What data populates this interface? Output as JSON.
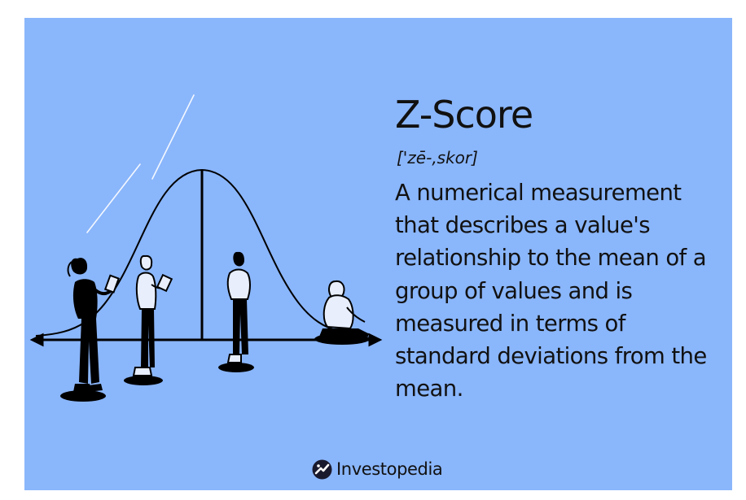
{
  "card": {
    "background": "#8ab6fb",
    "title": "Z-Score",
    "pronunciation": "['zē-,skor]",
    "definition": "A numerical measurement that describes a value's relationship to the mean of a group of values and is measured in terms of standard deviations from the mean."
  },
  "illustration": {
    "subject": "bell-curve-with-people",
    "stroke_color": "#000000",
    "highlight_color": "#ffffff"
  },
  "brand": {
    "name": "Investopedia",
    "logo_icon": "investopedia-logo-icon"
  }
}
